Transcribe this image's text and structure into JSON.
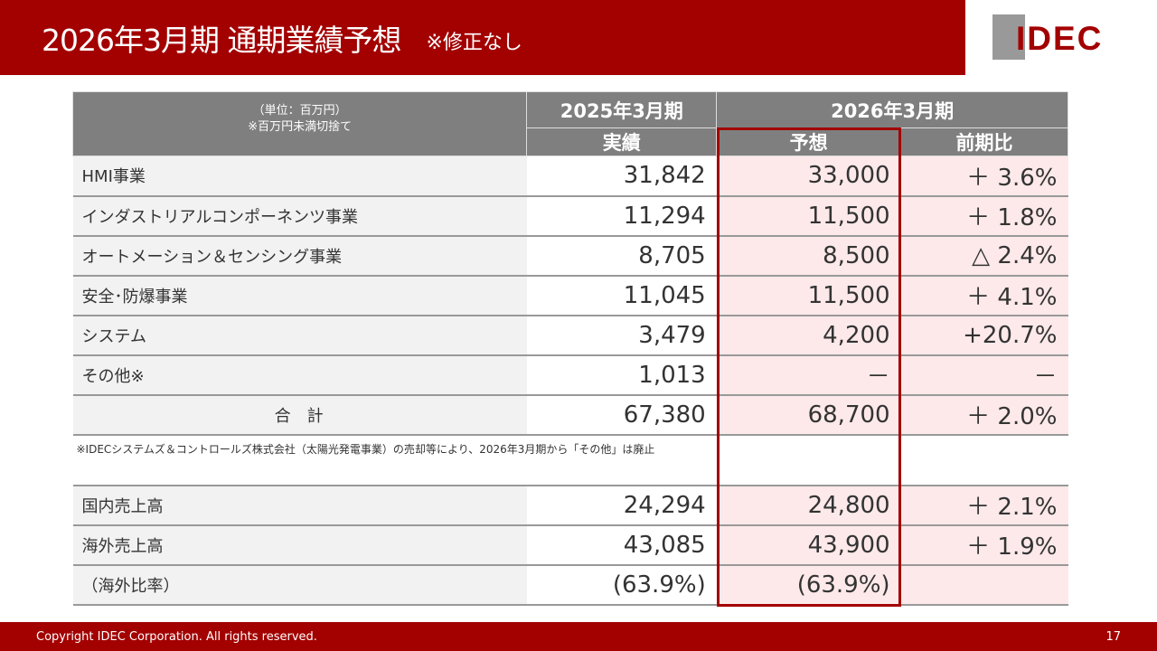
{
  "header": {
    "title": "2026年3月期 通期業績予想",
    "subtitle": "※修正なし",
    "logo": "IDEC"
  },
  "table": {
    "unit_line1": "（単位：百万円）",
    "unit_line2": "※百万円未満切捨て",
    "period_prev": "2025年3月期",
    "period_curr": "2026年3月期",
    "col_actual": "実績",
    "col_forecast": "予想",
    "col_yoy": "前期比",
    "rows": [
      {
        "label": "HMI事業",
        "actual": "31,842",
        "forecast": "33,000",
        "yoy": "＋ 3.6%"
      },
      {
        "label": "インダストリアルコンポーネンツ事業",
        "actual": "11,294",
        "forecast": "11,500",
        "yoy": "＋ 1.8%"
      },
      {
        "label": "オートメーション＆センシング事業",
        "actual": "8,705",
        "forecast": "8,500",
        "yoy": "△ 2.4%"
      },
      {
        "label": "安全･防爆事業",
        "actual": "11,045",
        "forecast": "11,500",
        "yoy": "＋ 4.1%"
      },
      {
        "label": "システム",
        "actual": "3,479",
        "forecast": "4,200",
        "yoy": "+20.7%"
      },
      {
        "label": "その他※",
        "actual": "1,013",
        "forecast": "－",
        "yoy": "－"
      },
      {
        "label": "合　計",
        "actual": "67,380",
        "forecast": "68,700",
        "yoy": "＋ 2.0%",
        "total": true
      }
    ],
    "note": "※IDECシステムズ＆コントロールズ株式会社（太陽光発電事業）の売却等により、2026年3月期から「その他」は廃止",
    "rows2": [
      {
        "label": "国内売上高",
        "actual": "24,294",
        "forecast": "24,800",
        "yoy": "＋ 2.1%"
      },
      {
        "label": "海外売上高",
        "actual": "43,085",
        "forecast": "43,900",
        "yoy": "＋ 1.9%"
      },
      {
        "label": "（海外比率）",
        "actual": "(63.9%)",
        "forecast": "(63.9%)",
        "yoy": ""
      }
    ]
  },
  "footer": {
    "copyright": "Copyright IDEC Corporation. All rights reserved.",
    "page": "17"
  },
  "colors": {
    "brand": "#a30000",
    "header_gray": "#7f7f7f",
    "highlight": "#fde9ea"
  }
}
